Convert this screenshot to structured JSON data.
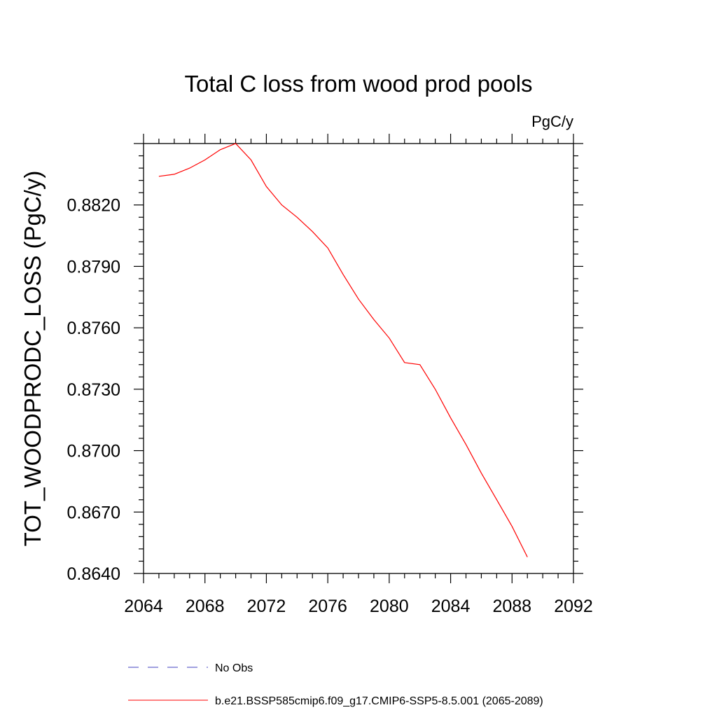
{
  "chart_data": {
    "type": "line",
    "title": "Total C loss from wood prod pools",
    "units_label": "PgC/y",
    "xlabel": "",
    "ylabel": "TOT_WOODPRODC_LOSS  (PgC/y)",
    "xlim": [
      2064,
      2092
    ],
    "ylim": [
      0.864,
      0.885
    ],
    "x_ticks": [
      2064,
      2068,
      2072,
      2076,
      2080,
      2084,
      2088,
      2092
    ],
    "x_tick_labels": [
      "2064",
      "2068",
      "2072",
      "2076",
      "2080",
      "2084",
      "2088",
      "2092"
    ],
    "y_ticks": [
      0.864,
      0.867,
      0.87,
      0.873,
      0.876,
      0.879,
      0.882
    ],
    "y_tick_labels": [
      "0.8640",
      "0.8670",
      "0.8700",
      "0.8730",
      "0.8760",
      "0.8790",
      "0.8820"
    ],
    "grid": false,
    "legend_placement": "bottom",
    "series": [
      {
        "name": "No Obs",
        "color": "#4040c0",
        "style": "dashed",
        "x": [],
        "y": []
      },
      {
        "name": "b.e21.BSSP585cmip6.f09_g17.CMIP6-SSP5-8.5.001 (2065-2089)",
        "color": "#ff0000",
        "style": "solid",
        "x": [
          2065,
          2066,
          2067,
          2068,
          2069,
          2070,
          2071,
          2072,
          2073,
          2074,
          2075,
          2076,
          2077,
          2078,
          2079,
          2080,
          2081,
          2082,
          2083,
          2084,
          2085,
          2086,
          2087,
          2088,
          2089
        ],
        "y": [
          0.8834,
          0.8835,
          0.8838,
          0.8842,
          0.8847,
          0.885,
          0.8842,
          0.8829,
          0.882,
          0.8814,
          0.8807,
          0.8799,
          0.8786,
          0.8774,
          0.8764,
          0.8755,
          0.8743,
          0.8742,
          0.873,
          0.8716,
          0.8703,
          0.8689,
          0.8676,
          0.8663,
          0.8648
        ]
      }
    ]
  }
}
